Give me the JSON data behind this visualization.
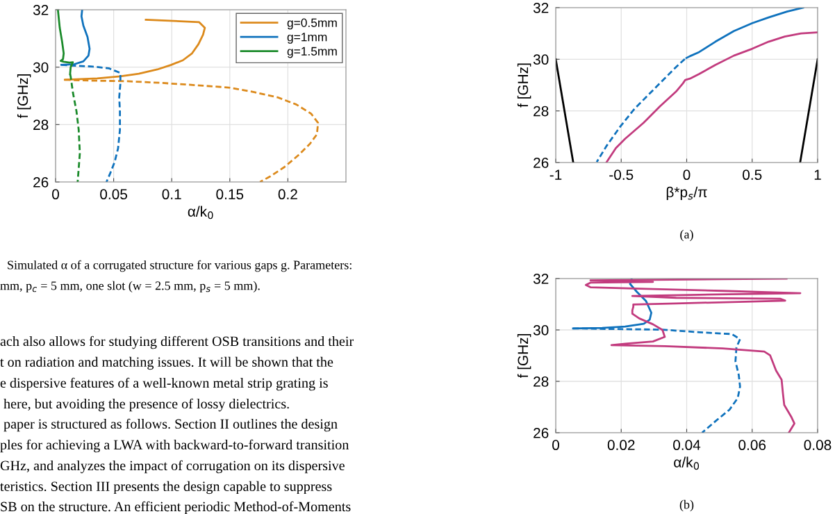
{
  "chart_data": [
    {
      "type": "line",
      "xlabel": "α/k$_{0}$",
      "ylabel": "f [GHz]",
      "xlim": [
        0,
        0.25
      ],
      "ylim": [
        26,
        32
      ],
      "xticks": [
        0,
        0.05,
        0.1,
        0.15,
        0.2
      ],
      "yticks": [
        26,
        28,
        30,
        32
      ],
      "grid": true,
      "legend": "top right",
      "series": [
        {
          "name": "g=0.5mm",
          "color": "#dc8a1c",
          "line_style": "solid",
          "x": [
            0.0777,
            0.1235,
            0.1285,
            0.127,
            0.123,
            0.1175,
            0.1096,
            0.0996,
            0.0876,
            0.0717,
            0.0558,
            0.0359,
            0.018,
            0.008
          ],
          "values": [
            31.65,
            31.57,
            31.37,
            31.13,
            30.8,
            30.48,
            30.24,
            30.08,
            29.92,
            29.77,
            29.68,
            29.61,
            29.58,
            29.56
          ]
        },
        {
          "color": "#dc8a1c",
          "line_style": "dashed",
          "x": [
            0.008,
            0.0319,
            0.0618,
            0.0916,
            0.1215,
            0.149,
            0.171,
            0.191,
            0.2072,
            0.22,
            0.226,
            0.225,
            0.219,
            0.209,
            0.197,
            0.185,
            0.176
          ],
          "values": [
            29.56,
            29.53,
            29.51,
            29.45,
            29.37,
            29.29,
            29.13,
            28.95,
            28.7,
            28.38,
            28.06,
            27.66,
            27.33,
            26.93,
            26.52,
            26.2,
            26.0
          ]
        },
        {
          "name": "g=1mm",
          "color": "#0f72bd",
          "line_style": "solid",
          "x": [
            0.0229,
            0.0223,
            0.0239,
            0.0275,
            0.0293,
            0.0283,
            0.0239,
            0.016,
            0.005
          ],
          "values": [
            32.0,
            31.77,
            31.45,
            31.05,
            30.64,
            30.4,
            30.2,
            30.1,
            30.08
          ]
        },
        {
          "color": "#0f72bd",
          "line_style": "dashed",
          "x": [
            0.005,
            0.012,
            0.0319,
            0.0458,
            0.0558,
            0.0558,
            0.0548,
            0.0554,
            0.0554,
            0.0538,
            0.0508,
            0.0468,
            0.0438
          ],
          "values": [
            30.08,
            30.06,
            30.02,
            29.96,
            29.8,
            29.43,
            28.95,
            28.46,
            27.82,
            27.17,
            26.69,
            26.28,
            26.0
          ]
        },
        {
          "name": "g=1.5mm",
          "color": "#1a8a2a",
          "line_style": "solid",
          "x": [
            0.002,
            0.0036,
            0.0056,
            0.007,
            0.0064,
            0.0044,
            0.007,
            0.012,
            0.0149,
            0.013,
            0.0125
          ],
          "values": [
            32.0,
            31.37,
            30.89,
            30.48,
            30.28,
            30.22,
            30.19,
            30.16,
            30.17,
            30.0,
            29.76
          ]
        },
        {
          "color": "#1a8a2a",
          "line_style": "dashed",
          "x": [
            0.0125,
            0.013,
            0.015,
            0.018,
            0.0199,
            0.0209,
            0.019
          ],
          "values": [
            29.76,
            29.67,
            29.1,
            28.46,
            27.82,
            27.0,
            26.0
          ]
        }
      ],
      "annotations": [
        "Simulated α of a corrugated structure for various gaps g. Parameters:",
        "mm, p$_{c}$ = 5 mm, one slot (w = 2.5 mm, p$_{s}$ = 5 mm).",
        "ach also allows for studying different OSB transitions and their",
        "t on radiation and matching issues. It will be shown that the",
        "e dispersive features of a well-known metal strip grating is",
        " here, but avoiding the presence of lossy dielectrics.",
        " paper is structured as follows. Section II outlines the design",
        "ples for achieving a LWA with backward-to-forward transition",
        "GHz, and analyzes the impact of corrugation on its dispersive",
        "teristics. Section III presents the design capable to suppress",
        "SB on the structure. An efficient periodic Method-of-Moments"
      ]
    },
    {
      "type": "line",
      "xlabel": "β*p$_{s}$/π",
      "ylabel": "f [GHz]",
      "xlim": [
        -1,
        1
      ],
      "ylim": [
        26,
        32
      ],
      "xticks": [
        -1,
        -0.5,
        0,
        0.5,
        1
      ],
      "yticks": [
        26,
        28,
        30,
        32
      ],
      "grid": true,
      "series": [
        {
          "color": "#0f72bd",
          "line_style": "solid",
          "x": [
            -0.0018,
            0.025,
            0.0954,
            0.219,
            0.36,
            0.502,
            0.625,
            0.767,
            0.89
          ],
          "values": [
            30.05,
            30.12,
            30.28,
            30.68,
            31.09,
            31.4,
            31.62,
            31.85,
            32.0
          ]
        },
        {
          "color": "#0f72bd",
          "line_style": "dashed",
          "x": [
            -0.0141,
            -0.081,
            -0.187,
            -0.293,
            -0.399,
            -0.505,
            -0.611,
            -0.687
          ],
          "values": [
            30.01,
            29.7,
            29.16,
            28.62,
            28.08,
            27.41,
            26.65,
            26.02
          ]
        },
        {
          "color": "#c23b7e",
          "line_style": "solid",
          "x": [
            -0.611,
            -0.541,
            -0.47,
            -0.329,
            -0.205,
            -0.081,
            -0.028,
            -0.0106,
            0.025,
            0.0954,
            0.219,
            0.36,
            0.502,
            0.625,
            0.749,
            0.873,
            1.0
          ],
          "values": [
            26.02,
            26.56,
            26.92,
            27.54,
            28.17,
            28.75,
            29.07,
            29.2,
            29.25,
            29.43,
            29.78,
            30.14,
            30.41,
            30.68,
            30.88,
            31.0,
            31.04
          ]
        },
        {
          "color": "#000000",
          "line_style": "solid",
          "x": [
            -1,
            -0.867
          ],
          "values": [
            30.0,
            26.02
          ]
        },
        {
          "color": "#000000",
          "line_style": "solid",
          "x": [
            1,
            0.867
          ],
          "values": [
            30.0,
            26.02
          ]
        }
      ],
      "annotations": [
        "(a)"
      ]
    },
    {
      "type": "line",
      "xlabel": "α/k$_{0}$",
      "ylabel": "f [GHz]",
      "xlim": [
        0,
        0.08
      ],
      "ylim": [
        26,
        32
      ],
      "xticks": [
        0,
        0.02,
        0.04,
        0.06,
        0.08
      ],
      "yticks": [
        26,
        28,
        30,
        32
      ],
      "grid": true,
      "series": [
        {
          "color": "#0f72bd",
          "line_style": "solid",
          "x": [
            0.0232,
            0.0227,
            0.0248,
            0.0276,
            0.0292,
            0.0287,
            0.0269,
            0.0212,
            0.0142,
            0.0053
          ],
          "values": [
            32.0,
            31.79,
            31.48,
            31.12,
            30.67,
            30.4,
            30.24,
            30.13,
            30.08,
            30.06
          ]
        },
        {
          "color": "#0f72bd",
          "line_style": "dashed",
          "x": [
            0.0053,
            0.0156,
            0.0326,
            0.0439,
            0.0538,
            0.0563,
            0.0552,
            0.0549,
            0.0559,
            0.0563,
            0.0556,
            0.0531,
            0.0488,
            0.0447
          ],
          "values": [
            30.06,
            30.04,
            30.01,
            29.91,
            29.84,
            29.64,
            29.32,
            28.78,
            28.25,
            27.8,
            27.35,
            26.9,
            26.45,
            26.0
          ]
        },
        {
          "color": "#c23b7e",
          "line_style": "solid",
          "x": [
            0.0712,
            0.0729,
            0.0719,
            0.0698,
            0.0694,
            0.069,
            0.0673,
            0.0655,
            0.0637,
            0.051,
            0.0333,
            0.017,
            0.0212,
            0.0297,
            0.0333,
            0.0326,
            0.0297,
            0.0255,
            0.0234,
            0.0234,
            0.0237,
            0.0237,
            0.0368,
            0.0701,
            0.0687,
            0.0368,
            0.0234,
            0.0439,
            0.0747,
            0.051,
            0.0297,
            0.0106,
            0.0092,
            0.0106,
            0.0297,
            0.0106,
            0.0297,
            0.051,
            0.0705
          ],
          "values": [
            26.0,
            26.36,
            26.63,
            27.08,
            27.53,
            28.06,
            28.42,
            29.01,
            29.16,
            29.28,
            29.37,
            29.41,
            29.46,
            29.55,
            29.73,
            30.0,
            30.22,
            30.45,
            30.63,
            30.76,
            30.9,
            30.99,
            31.03,
            31.14,
            31.21,
            31.25,
            31.32,
            31.37,
            31.43,
            31.52,
            31.59,
            31.66,
            31.75,
            31.84,
            31.87,
            31.93,
            31.95,
            31.98,
            32.0
          ]
        }
      ],
      "annotations": [
        "(b)"
      ]
    }
  ]
}
